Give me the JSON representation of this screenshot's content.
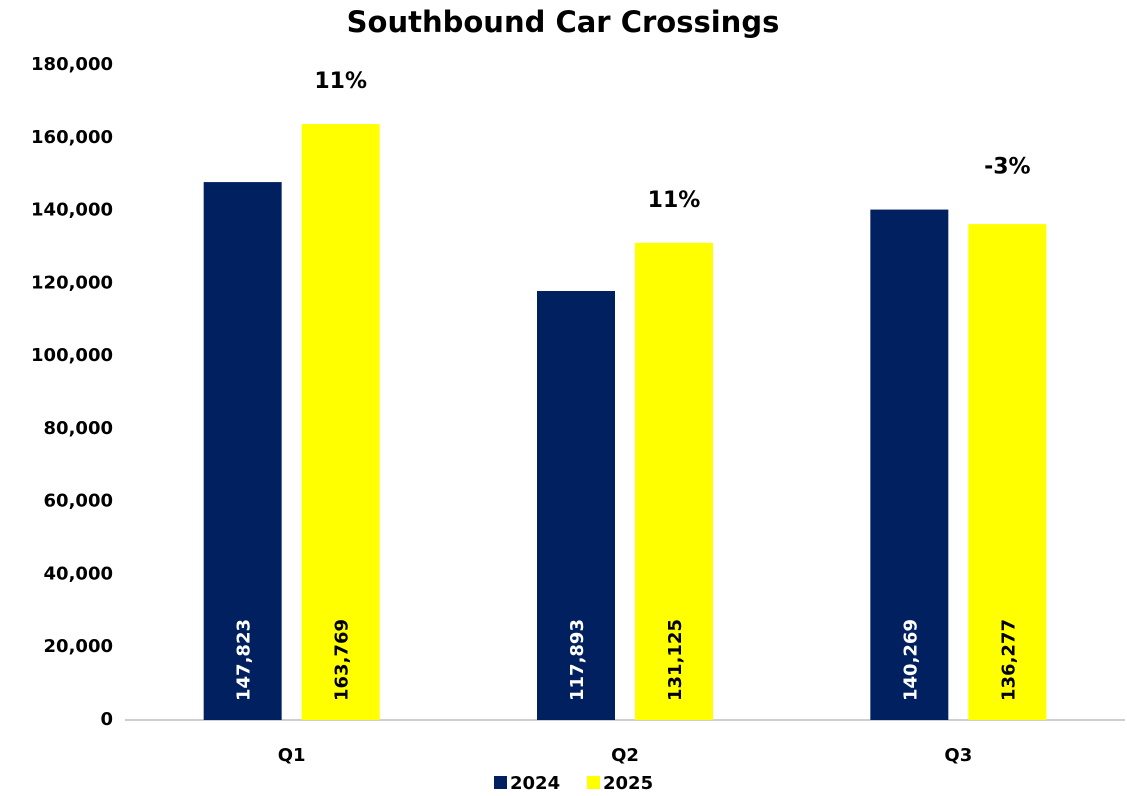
{
  "chart_data": {
    "type": "bar",
    "title": "Southbound Car Crossings",
    "categories": [
      "Q1",
      "Q2",
      "Q3"
    ],
    "series": [
      {
        "name": "2024",
        "color": "#002060",
        "values": [
          147823,
          117893,
          140269
        ],
        "value_labels": [
          "147,823",
          "117,893",
          "140,269"
        ]
      },
      {
        "name": "2025",
        "color": "#ffff00",
        "values": [
          163769,
          131125,
          136277
        ],
        "value_labels": [
          "163,769",
          "131,125",
          "136,277"
        ]
      }
    ],
    "annotations": [
      "11%",
      "11%",
      "-3%"
    ],
    "ylim": [
      0,
      180000
    ],
    "yticks": [
      0,
      {
        "value": 20000,
        "label": "20,000"
      },
      {
        "value": 40000,
        "label": "40,000"
      },
      {
        "value": 60000,
        "label": "60,000"
      },
      {
        "value": 80000,
        "label": "80,000"
      },
      {
        "value": 100000,
        "label": "100,000"
      },
      {
        "value": 120000,
        "label": "120,000"
      },
      {
        "value": 140000,
        "label": "140,000"
      },
      {
        "value": 160000,
        "label": "160,000"
      },
      {
        "value": 180000,
        "label": "180,000"
      }
    ],
    "grid": false,
    "legend": "bottom"
  }
}
